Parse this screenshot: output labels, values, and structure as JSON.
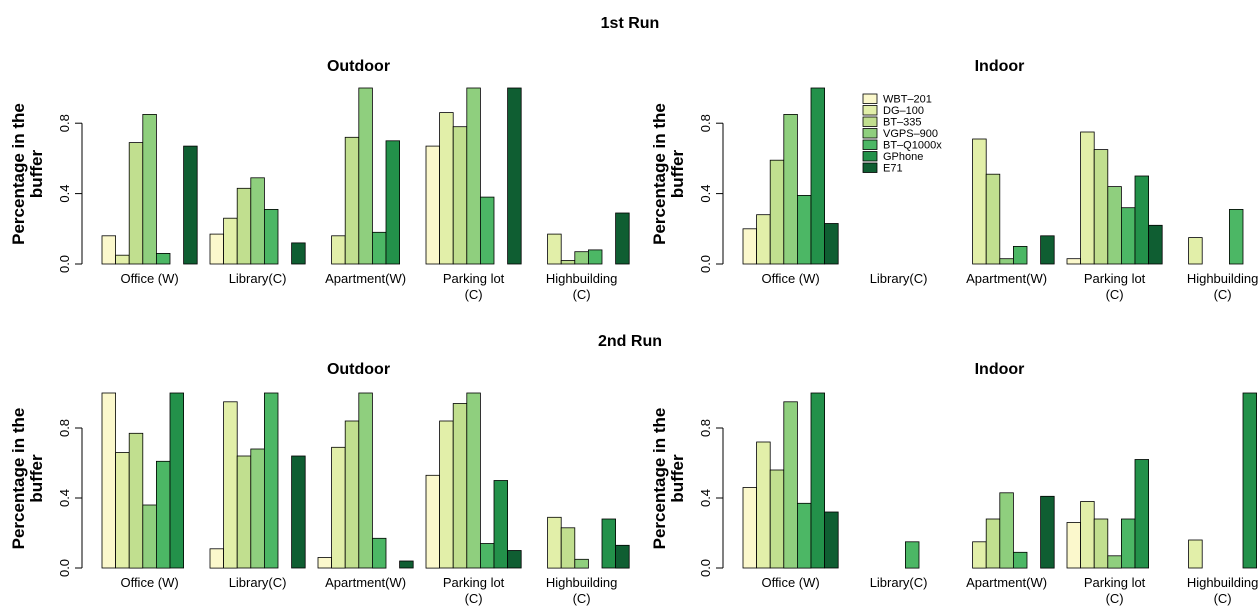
{
  "figure": {
    "run_titles": [
      "1st Run",
      "2nd Run"
    ],
    "ylabel_line1": "Percentage in the",
    "ylabel_line2": "buffer"
  },
  "colors": [
    "#fbf8cc",
    "#e2efa9",
    "#c1df8f",
    "#8fcf7e",
    "#4cb765",
    "#23914a",
    "#0f5e32"
  ],
  "chart_data": [
    {
      "type": "bar",
      "run": "1st Run",
      "title": "Outdoor",
      "ylabel": "Percentage in the buffer",
      "ylim": [
        0,
        1
      ],
      "yticks": [
        "0.0",
        "0.4",
        "0.8"
      ],
      "categories": [
        "Office (W)",
        "Library(C)",
        "Apartment(W)",
        "Parking lot\n(C)",
        "Highbuilding\n(C)"
      ],
      "series": [
        {
          "name": "WBT–201",
          "values": [
            0.16,
            0.17,
            0.0,
            0.67,
            0.0
          ]
        },
        {
          "name": "DG–100",
          "values": [
            0.05,
            0.26,
            0.16,
            0.86,
            0.17
          ]
        },
        {
          "name": "BT–335",
          "values": [
            0.69,
            0.43,
            0.72,
            0.78,
            0.02
          ]
        },
        {
          "name": "VGPS–900",
          "values": [
            0.85,
            0.49,
            1.0,
            1.0,
            0.07
          ]
        },
        {
          "name": "BT–Q1000x",
          "values": [
            0.06,
            0.31,
            0.18,
            0.38,
            0.08
          ]
        },
        {
          "name": "GPhone",
          "values": [
            0.0,
            0.0,
            0.7,
            0.0,
            0.0
          ]
        },
        {
          "name": "E71",
          "values": [
            0.67,
            0.12,
            0.0,
            1.0,
            0.29
          ]
        }
      ],
      "grid": false,
      "legend": "none"
    },
    {
      "type": "bar",
      "run": "1st Run",
      "title": "Indoor",
      "ylabel": "Percentage in the buffer",
      "ylim": [
        0,
        1
      ],
      "yticks": [
        "0.0",
        "0.4",
        "0.8"
      ],
      "categories": [
        "Office (W)",
        "Library(C)",
        "Apartment(W)",
        "Parking lot\n(C)",
        "Highbuilding\n(C)"
      ],
      "series": [
        {
          "name": "WBT–201",
          "values": [
            0.2,
            0.0,
            0.0,
            0.03,
            0.0
          ]
        },
        {
          "name": "DG–100",
          "values": [
            0.28,
            0.0,
            0.71,
            0.75,
            0.15
          ]
        },
        {
          "name": "BT–335",
          "values": [
            0.59,
            0.0,
            0.51,
            0.65,
            0.0
          ]
        },
        {
          "name": "VGPS–900",
          "values": [
            0.85,
            0.0,
            0.03,
            0.44,
            0.0
          ]
        },
        {
          "name": "BT–Q1000x",
          "values": [
            0.39,
            0.0,
            0.1,
            0.32,
            0.31
          ]
        },
        {
          "name": "GPhone",
          "values": [
            1.0,
            0.0,
            0.0,
            0.5,
            0.0
          ]
        },
        {
          "name": "E71",
          "values": [
            0.23,
            0.0,
            0.16,
            0.22,
            0.0
          ]
        }
      ],
      "grid": false,
      "legend": "top-right"
    },
    {
      "type": "bar",
      "run": "2nd Run",
      "title": "Outdoor",
      "ylabel": "Percentage in the buffer",
      "ylim": [
        0,
        1
      ],
      "yticks": [
        "0.0",
        "0.4",
        "0.8"
      ],
      "categories": [
        "Office (W)",
        "Library(C)",
        "Apartment(W)",
        "Parking lot\n(C)",
        "Highbuilding\n(C)"
      ],
      "series": [
        {
          "name": "WBT–201",
          "values": [
            1.0,
            0.11,
            0.06,
            0.53,
            0.0
          ]
        },
        {
          "name": "DG–100",
          "values": [
            0.66,
            0.95,
            0.69,
            0.84,
            0.29
          ]
        },
        {
          "name": "BT–335",
          "values": [
            0.77,
            0.64,
            0.84,
            0.94,
            0.23
          ]
        },
        {
          "name": "VGPS–900",
          "values": [
            0.36,
            0.68,
            1.0,
            1.0,
            0.05
          ]
        },
        {
          "name": "BT–Q1000x",
          "values": [
            0.61,
            1.0,
            0.17,
            0.14,
            0.0
          ]
        },
        {
          "name": "GPhone",
          "values": [
            1.0,
            0.0,
            0.0,
            0.5,
            0.28
          ]
        },
        {
          "name": "E71",
          "values": [
            0.0,
            0.64,
            0.04,
            0.1,
            0.13
          ]
        }
      ],
      "grid": false,
      "legend": "none"
    },
    {
      "type": "bar",
      "run": "2nd Run",
      "title": "Indoor",
      "ylabel": "Percentage in the buffer",
      "ylim": [
        0,
        1
      ],
      "yticks": [
        "0.0",
        "0.4",
        "0.8"
      ],
      "categories": [
        "Office (W)",
        "Library(C)",
        "Apartment(W)",
        "Parking lot\n(C)",
        "Highbuilding\n(C)"
      ],
      "series": [
        {
          "name": "WBT–201",
          "values": [
            0.46,
            0.0,
            0.0,
            0.26,
            0.0
          ]
        },
        {
          "name": "DG–100",
          "values": [
            0.72,
            0.0,
            0.15,
            0.38,
            0.16
          ]
        },
        {
          "name": "BT–335",
          "values": [
            0.56,
            0.0,
            0.28,
            0.28,
            0.0
          ]
        },
        {
          "name": "VGPS–900",
          "values": [
            0.95,
            0.0,
            0.43,
            0.07,
            0.0
          ]
        },
        {
          "name": "BT–Q1000x",
          "values": [
            0.37,
            0.15,
            0.09,
            0.28,
            0.0
          ]
        },
        {
          "name": "GPhone",
          "values": [
            1.0,
            0.0,
            0.0,
            0.62,
            1.0
          ]
        },
        {
          "name": "E71",
          "values": [
            0.32,
            0.0,
            0.41,
            0.0,
            0.0
          ]
        }
      ],
      "grid": false,
      "legend": "none"
    }
  ]
}
